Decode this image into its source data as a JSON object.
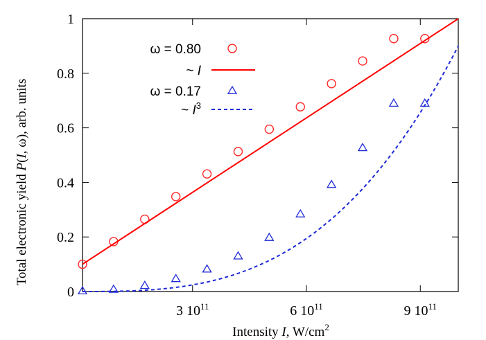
{
  "chart_data": {
    "type": "scatter",
    "xlabel": {
      "prefix": "Intensity ",
      "var": "I",
      "suffix": ", W/cm",
      "sup": "2"
    },
    "ylabel": {
      "prefix": "Total electronic yield ",
      "var_P": "P",
      "args_open": "(",
      "var_I": "I",
      "args_rest": ", ω), arb. units"
    },
    "x_ticks": [
      {
        "value": 300000000000.0,
        "mantissa": "3",
        "base": "10",
        "exp": "11"
      },
      {
        "value": 600000000000.0,
        "mantissa": "6",
        "base": "10",
        "exp": "11"
      },
      {
        "value": 900000000000.0,
        "mantissa": "9",
        "base": "10",
        "exp": "11"
      }
    ],
    "y_ticks": [
      {
        "value": 0,
        "label": "0"
      },
      {
        "value": 0.2,
        "label": "0.2"
      },
      {
        "value": 0.4,
        "label": "0.4"
      },
      {
        "value": 0.6,
        "label": "0.6"
      },
      {
        "value": 0.8,
        "label": "0.8"
      },
      {
        "value": 1.0,
        "label": "1"
      }
    ],
    "xlim": [
      10000000000.0,
      1000000000000.0
    ],
    "ylim": [
      0,
      1
    ],
    "grid": false,
    "legend_position": "top-left",
    "series": [
      {
        "name": "ω = 0.80",
        "kind": "points",
        "marker": "circle",
        "color": "#ff2a2a",
        "x": [
          10000000000.0,
          92000000000.0,
          174000000000.0,
          256000000000.0,
          338000000000.0,
          420000000000.0,
          502000000000.0,
          584000000000.0,
          666000000000.0,
          748000000000.0,
          830000000000.0,
          912000000000.0
        ],
        "y": [
          0.1,
          0.183,
          0.265,
          0.348,
          0.431,
          0.513,
          0.595,
          0.677,
          0.762,
          0.845,
          0.927,
          0.927
        ]
      },
      {
        "name": "~ I",
        "kind": "line",
        "style": "solid",
        "color": "#ff0000",
        "x": [
          10000000000.0,
          1000000000000.0
        ],
        "y": [
          0.1,
          1.0
        ]
      },
      {
        "name": "ω = 0.17",
        "kind": "points",
        "marker": "triangle",
        "color": "#1f2ad6",
        "x": [
          10000000000.0,
          92000000000.0,
          174000000000.0,
          256000000000.0,
          338000000000.0,
          420000000000.0,
          502000000000.0,
          584000000000.0,
          666000000000.0,
          748000000000.0,
          830000000000.0,
          912000000000.0
        ],
        "y": [
          0.002,
          0.008,
          0.022,
          0.047,
          0.082,
          0.13,
          0.198,
          0.284,
          0.392,
          0.527,
          0.69,
          0.69
        ]
      },
      {
        "name": "~ I³",
        "kind": "line",
        "style": "dashed",
        "color": "#1f2ad6",
        "function": "cubic",
        "coefficient": 0.9,
        "x_range": [
          10000000000.0,
          1000000000000.0
        ]
      }
    ]
  },
  "legend": {
    "items": [
      {
        "prefix": "ω = 0.80",
        "var": "",
        "sup": ""
      },
      {
        "prefix": "~ ",
        "var": "I",
        "sup": ""
      },
      {
        "prefix": "ω = 0.17",
        "var": "",
        "sup": ""
      },
      {
        "prefix": "~ ",
        "var": "I",
        "sup": "3"
      }
    ]
  }
}
